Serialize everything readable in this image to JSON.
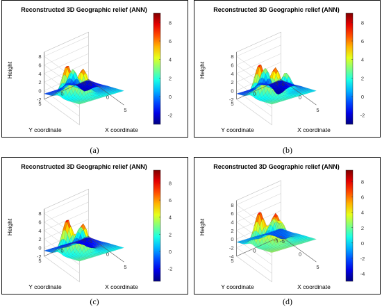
{
  "figure": {
    "panels": [
      {
        "caption": "(a)",
        "chart_title": "Reconstructed 3D Geographic relief (ANN)",
        "z_axis_label": "Height",
        "x_axis_label": "X coordinate",
        "y_axis_label": "Y coordinate",
        "z_ticks": [
          "8",
          "6",
          "4",
          "2",
          "0",
          "-2"
        ],
        "x_ticks": [
          "-5",
          "0",
          "5"
        ],
        "y_ticks": [
          "5",
          "0",
          "-5"
        ],
        "colorbar_ticks": [
          "8",
          "6",
          "4",
          "2",
          "0",
          "-2"
        ]
      },
      {
        "caption": "(b)",
        "chart_title": "Reconstructed 3D Geographic relief (ANN)",
        "z_axis_label": "Height",
        "x_axis_label": "X coordinate",
        "y_axis_label": "Y coordinate",
        "z_ticks": [
          "8",
          "6",
          "4",
          "2",
          "0",
          "-2"
        ],
        "x_ticks": [
          "-5",
          "0",
          "5"
        ],
        "y_ticks": [
          "5",
          "0",
          "-5"
        ],
        "colorbar_ticks": [
          "8",
          "6",
          "4",
          "2",
          "0",
          "-2"
        ]
      },
      {
        "caption": "(c)",
        "chart_title": "Reconstructed 3D Geographic relief (ANN)",
        "z_axis_label": "Height",
        "x_axis_label": "X coordinate",
        "y_axis_label": "Y coordinate",
        "z_ticks": [
          "8",
          "6",
          "4",
          "2",
          "0",
          "-2"
        ],
        "x_ticks": [
          "-5",
          "0",
          "5"
        ],
        "y_ticks": [
          "5",
          "0",
          "-5"
        ],
        "colorbar_ticks": [
          "8",
          "6",
          "4",
          "2",
          "0",
          "-2"
        ]
      },
      {
        "caption": "(d)",
        "chart_title": "Reconstructed 3D Geographic relief (ANN)",
        "z_axis_label": "Height",
        "x_axis_label": "X coordinate",
        "y_axis_label": "Y coordinate",
        "z_ticks": [
          "8",
          "6",
          "4",
          "2",
          "0",
          "-2",
          "-4"
        ],
        "x_ticks": [
          "-5",
          "0",
          "5"
        ],
        "y_ticks": [
          "5",
          "0",
          "-5"
        ],
        "colorbar_ticks": [
          "8",
          "6",
          "4",
          "2",
          "0",
          "-2",
          "-4"
        ]
      }
    ]
  },
  "chart_data": [
    {
      "type": "surface",
      "panel": "(a)",
      "title": "Reconstructed 3D Geographic relief (ANN)",
      "xlabel": "X coordinate",
      "ylabel": "Y coordinate",
      "zlabel": "Height",
      "xlim": [
        -5,
        5
      ],
      "ylim": [
        -5,
        5
      ],
      "zlim": [
        -2,
        8
      ],
      "colorbar": {
        "colormap": "jet",
        "range": [
          -3,
          9
        ],
        "ticks": [
          -2,
          0,
          2,
          4,
          6,
          8
        ]
      },
      "x_ticks": [
        -5,
        0,
        5
      ],
      "y_ticks": [
        -5,
        0,
        5
      ],
      "z_ticks": [
        -2,
        0,
        2,
        4,
        6,
        8
      ],
      "peaks": [
        {
          "x": -1,
          "y": 3,
          "height": 8.5
        },
        {
          "x": 1,
          "y": 1,
          "height": 7.5
        },
        {
          "x": -3,
          "y": 0,
          "height": 6.5
        },
        {
          "x": -1,
          "y": -2,
          "height": 4.5
        }
      ],
      "grid": true
    },
    {
      "type": "surface",
      "panel": "(b)",
      "title": "Reconstructed 3D Geographic relief (ANN)",
      "xlabel": "X coordinate",
      "ylabel": "Y coordinate",
      "zlabel": "Height",
      "xlim": [
        -5,
        5
      ],
      "ylim": [
        -5,
        5
      ],
      "zlim": [
        -2,
        8
      ],
      "colorbar": {
        "colormap": "jet",
        "range": [
          -3,
          9
        ],
        "ticks": [
          -2,
          0,
          2,
          4,
          6,
          8
        ]
      },
      "x_ticks": [
        -5,
        0,
        5
      ],
      "y_ticks": [
        -5,
        0,
        5
      ],
      "z_ticks": [
        -2,
        0,
        2,
        4,
        6,
        8
      ],
      "peaks": [
        {
          "x": -1,
          "y": 3,
          "height": 8.8
        },
        {
          "x": 1,
          "y": 1,
          "height": 7.8
        },
        {
          "x": -3,
          "y": 0,
          "height": 6.8
        },
        {
          "x": 0,
          "y": -2,
          "height": 6.0
        }
      ],
      "grid": true
    },
    {
      "type": "surface",
      "panel": "(c)",
      "title": "Reconstructed 3D Geographic relief (ANN)",
      "xlabel": "X coordinate",
      "ylabel": "Y coordinate",
      "zlabel": "Height",
      "xlim": [
        -5,
        5
      ],
      "ylim": [
        -5,
        5
      ],
      "zlim": [
        -2,
        8
      ],
      "colorbar": {
        "colormap": "jet",
        "range": [
          -3.5,
          9.5
        ],
        "ticks": [
          -2,
          0,
          2,
          4,
          6,
          8
        ]
      },
      "x_ticks": [
        -5,
        0,
        5
      ],
      "y_ticks": [
        -5,
        0,
        5
      ],
      "z_ticks": [
        -2,
        0,
        2,
        4,
        6,
        8
      ],
      "peaks": [
        {
          "x": -1,
          "y": 3,
          "height": 9.2
        },
        {
          "x": 1,
          "y": 1,
          "height": 8.0
        },
        {
          "x": -2,
          "y": -1,
          "height": 7.5
        }
      ],
      "grid": true
    },
    {
      "type": "surface",
      "panel": "(d)",
      "title": "Reconstructed 3D Geographic relief (ANN)",
      "xlabel": "X coordinate",
      "ylabel": "Y coordinate",
      "zlabel": "Height",
      "xlim": [
        -5,
        5
      ],
      "ylim": [
        -5,
        5
      ],
      "zlim": [
        -4,
        8
      ],
      "colorbar": {
        "colormap": "jet",
        "range": [
          -5,
          9.5
        ],
        "ticks": [
          -4,
          -2,
          0,
          2,
          4,
          6,
          8
        ]
      },
      "x_ticks": [
        -5,
        0,
        5
      ],
      "y_ticks": [
        -5,
        0,
        5
      ],
      "z_ticks": [
        -4,
        -2,
        0,
        2,
        4,
        6,
        8
      ],
      "peaks": [
        {
          "x": -1,
          "y": 3,
          "height": 9.0
        },
        {
          "x": 1,
          "y": 1,
          "height": 8.2
        },
        {
          "x": -2,
          "y": -1,
          "height": 7.0
        },
        {
          "x": 0,
          "y": -1,
          "height": 5.5
        }
      ],
      "grid": true
    }
  ]
}
